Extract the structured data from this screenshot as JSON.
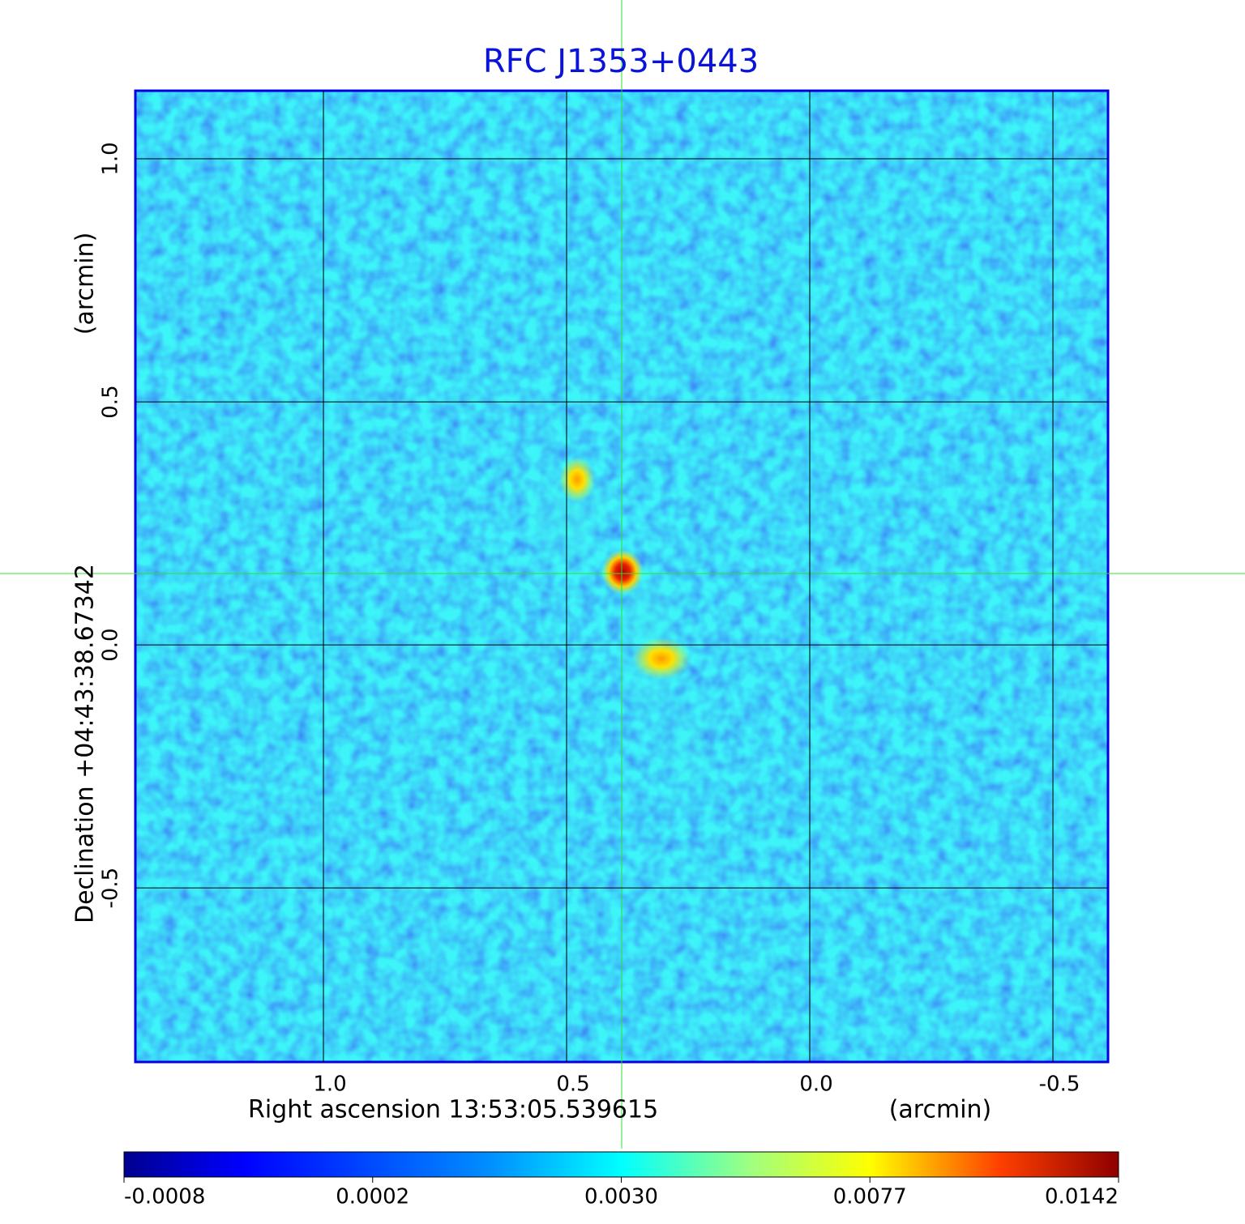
{
  "chart_data": {
    "type": "image",
    "title": "RFC J1353+0443",
    "xlabel": "Right ascension  13:53:05.539615",
    "xunit": "(arcmin)",
    "ylabel": "Declination  +04:43:38.67342",
    "yunit": "(arcmin)",
    "xlim": [
      1.3867,
      -0.6133
    ],
    "ylim": [
      -0.858,
      1.14
    ],
    "xticks": [
      {
        "value": 1.0,
        "label": "1.0"
      },
      0.5,
      {
        "value": 0.0,
        "label": "0.0"
      },
      -0.5
    ],
    "yticks": [
      {
        "value": 1.0,
        "label": "1.0"
      },
      0.5,
      {
        "value": 0.0,
        "label": "0.0"
      },
      -0.5
    ],
    "grid": true,
    "colorbar_ticks": [
      -0.0008,
      0.0002,
      {
        "value": 0.003,
        "label": "0.0030"
      },
      0.0077,
      0.0142
    ]
  }
}
